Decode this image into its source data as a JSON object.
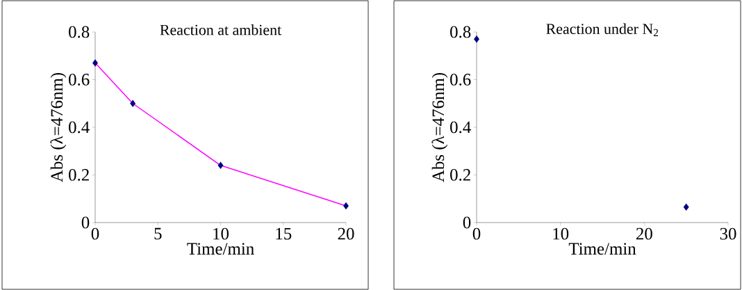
{
  "chart_data": [
    {
      "type": "line",
      "title": "Reaction at ambient",
      "xlabel": "Time/min",
      "ylabel": "Abs (λ=476nm)",
      "xlim": [
        0,
        20
      ],
      "xticks": [
        0,
        5,
        10,
        15,
        20
      ],
      "ylim": [
        0,
        0.8
      ],
      "yticks": [
        0,
        0.2,
        0.4,
        0.6,
        0.8
      ],
      "grid": false,
      "series": [
        {
          "type": "line",
          "color": "#ff00ff",
          "marker": "none",
          "x": [
            0,
            3,
            10,
            20
          ],
          "values": [
            0.67,
            0.5,
            0.24,
            0.07
          ]
        },
        {
          "type": "scatter",
          "color": "#000080",
          "marker": "diamond",
          "x": [
            0,
            3,
            10,
            20
          ],
          "values": [
            0.67,
            0.5,
            0.24,
            0.07
          ]
        }
      ]
    },
    {
      "type": "scatter",
      "title": "Reaction under N$_{2}$",
      "xlabel": "Time/min",
      "ylabel": "Abs (λ=476nm)",
      "xlim": [
        0,
        30
      ],
      "xticks": [
        0,
        10,
        20,
        30
      ],
      "ylim": [
        0,
        0.8
      ],
      "yticks": [
        0,
        0.2,
        0.4,
        0.6,
        0.8
      ],
      "grid": false,
      "marker": "diamond",
      "series": [
        {
          "color": "#000080",
          "x": [
            0,
            25
          ],
          "values": [
            0.77,
            0.065
          ]
        }
      ]
    }
  ]
}
